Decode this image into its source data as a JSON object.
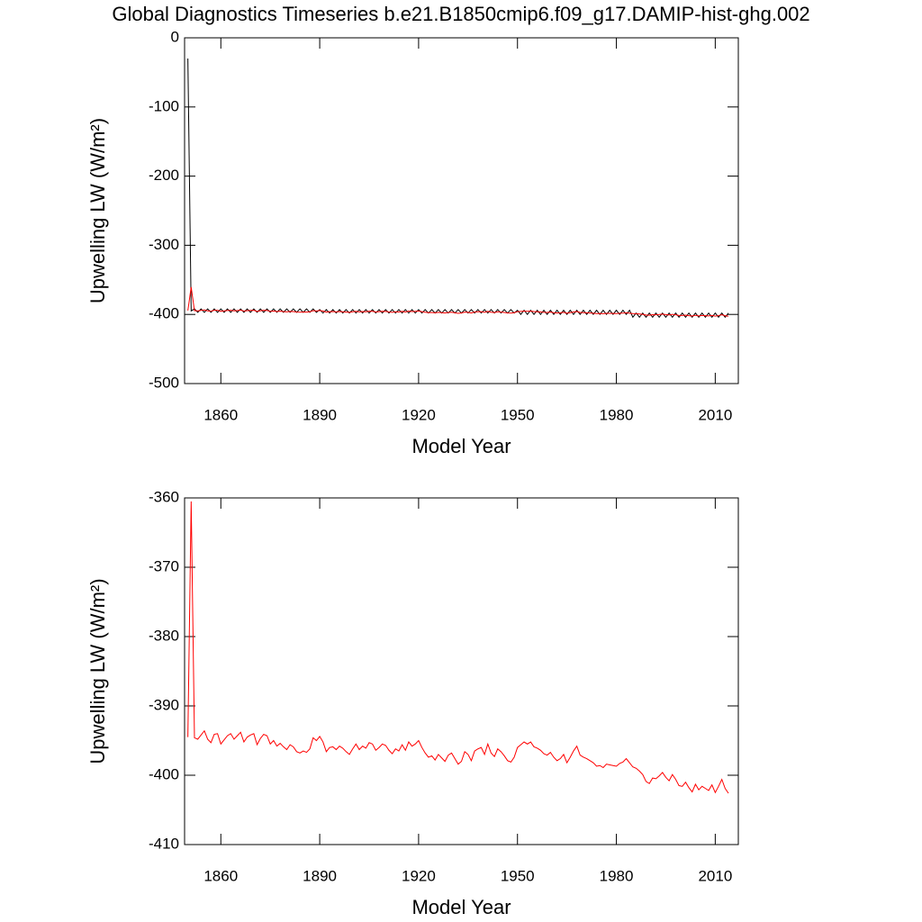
{
  "chart_data": [
    {
      "type": "line",
      "title": "Global Diagnostics Timeseries b.e21.B1850cmip6.f09_g17.DAMIP-hist-ghg.002",
      "xlabel": "Model Year",
      "ylabel": "Upwelling LW (W/m²)",
      "xlim": [
        1849,
        2017
      ],
      "xticks": [
        1860,
        1890,
        1920,
        1950,
        1980,
        2010
      ],
      "ylim": [
        -500,
        0
      ],
      "yticks": [
        0,
        -100,
        -200,
        -300,
        -400,
        -500
      ],
      "x": [
        1850,
        1851,
        1852,
        1853,
        1854,
        1855,
        1856,
        1857,
        1858,
        1859,
        1860,
        1861,
        1862,
        1863,
        1864,
        1865,
        1866,
        1867,
        1868,
        1869,
        1870,
        1871,
        1872,
        1873,
        1874,
        1875,
        1876,
        1877,
        1878,
        1879,
        1880,
        1881,
        1882,
        1883,
        1884,
        1885,
        1886,
        1887,
        1888,
        1889,
        1890,
        1891,
        1892,
        1893,
        1894,
        1895,
        1896,
        1897,
        1898,
        1899,
        1900,
        1901,
        1902,
        1903,
        1904,
        1905,
        1906,
        1907,
        1908,
        1909,
        1910,
        1911,
        1912,
        1913,
        1914,
        1915,
        1916,
        1917,
        1918,
        1919,
        1920,
        1921,
        1922,
        1923,
        1924,
        1925,
        1926,
        1927,
        1928,
        1929,
        1930,
        1931,
        1932,
        1933,
        1934,
        1935,
        1936,
        1937,
        1938,
        1939,
        1940,
        1941,
        1942,
        1943,
        1944,
        1945,
        1946,
        1947,
        1948,
        1949,
        1950,
        1951,
        1952,
        1953,
        1954,
        1955,
        1956,
        1957,
        1958,
        1959,
        1960,
        1961,
        1962,
        1963,
        1964,
        1965,
        1966,
        1967,
        1968,
        1969,
        1970,
        1971,
        1972,
        1973,
        1974,
        1975,
        1976,
        1977,
        1978,
        1979,
        1980,
        1981,
        1982,
        1983,
        1984,
        1985,
        1986,
        1987,
        1988,
        1989,
        1990,
        1991,
        1992,
        1993,
        1994,
        1995,
        1996,
        1997,
        1998,
        1999,
        2000,
        2001,
        2002,
        2003,
        2004,
        2005,
        2006,
        2007,
        2008,
        2009,
        2010,
        2011,
        2012,
        2013,
        2014
      ],
      "series": [
        {
          "color": "#000000",
          "values": [
            -30,
            -395,
            -392,
            -397,
            -392,
            -397,
            -392,
            -397,
            -392,
            -397,
            -392,
            -397,
            -392,
            -397,
            -392,
            -397,
            -392,
            -397,
            -392,
            -397,
            -392,
            -397,
            -392,
            -397,
            -392,
            -397,
            -392,
            -397,
            -392,
            -397,
            -392,
            -397,
            -392,
            -397,
            -392,
            -397,
            -392,
            -397,
            -392,
            -397,
            -393,
            -398,
            -393,
            -398,
            -393,
            -398,
            -393,
            -398,
            -393,
            -398,
            -393,
            -398,
            -393,
            -398,
            -393,
            -398,
            -393,
            -398,
            -393,
            -398,
            -393,
            -398,
            -393,
            -398,
            -393,
            -398,
            -393,
            -398,
            -393,
            -398,
            -393,
            -398,
            -393,
            -398,
            -393,
            -398,
            -393,
            -398,
            -393,
            -398,
            -393,
            -398,
            -393,
            -398,
            -393,
            -398,
            -393,
            -398,
            -393,
            -398,
            -393,
            -398,
            -393,
            -398,
            -393,
            -398,
            -393,
            -398,
            -393,
            -398,
            -394,
            -400,
            -394,
            -400,
            -394,
            -400,
            -394,
            -400,
            -394,
            -400,
            -394,
            -400,
            -394,
            -400,
            -394,
            -400,
            -394,
            -400,
            -394,
            -400,
            -394,
            -400,
            -394,
            -400,
            -394,
            -400,
            -394,
            -400,
            -394,
            -400,
            -394,
            -400,
            -394,
            -400,
            -394,
            -404,
            -398,
            -404,
            -398,
            -404,
            -398,
            -404,
            -398,
            -404,
            -398,
            -404,
            -398,
            -404,
            -398,
            -404,
            -398,
            -404,
            -398,
            -404,
            -398,
            -404,
            -398,
            -404,
            -398,
            -404,
            -398,
            -404,
            -398,
            -404,
            -398
          ]
        },
        {
          "color": "#ff0000",
          "values": [
            -394.5,
            -360.5,
            -394.6,
            -394.8,
            -394.2,
            -393.6,
            -394.8,
            -395.3,
            -394.1,
            -394.0,
            -395.5,
            -394.9,
            -394.3,
            -394.0,
            -394.8,
            -394.3,
            -393.8,
            -395.2,
            -394.5,
            -394.2,
            -394.0,
            -395.6,
            -394.7,
            -394.1,
            -394.3,
            -395.5,
            -395.0,
            -395.8,
            -395.4,
            -395.9,
            -396.3,
            -395.6,
            -395.9,
            -396.6,
            -396.8,
            -396.5,
            -396.7,
            -396.2,
            -394.6,
            -395.0,
            -394.4,
            -395.2,
            -396.6,
            -396.0,
            -395.9,
            -396.3,
            -395.8,
            -396.1,
            -396.6,
            -397.0,
            -396.2,
            -395.5,
            -396.3,
            -395.8,
            -396.1,
            -395.3,
            -395.5,
            -396.4,
            -396.0,
            -395.5,
            -395.7,
            -396.4,
            -396.9,
            -396.2,
            -396.5,
            -395.6,
            -396.4,
            -395.2,
            -395.8,
            -395.5,
            -395.0,
            -396.0,
            -396.8,
            -397.4,
            -397.2,
            -397.8,
            -397.0,
            -397.5,
            -398.0,
            -397.1,
            -396.8,
            -397.6,
            -398.4,
            -398.0,
            -396.6,
            -397.0,
            -397.9,
            -396.5,
            -396.2,
            -396.0,
            -397.0,
            -395.5,
            -396.8,
            -397.3,
            -396.2,
            -396.6,
            -397.2,
            -397.9,
            -398.1,
            -397.4,
            -396.0,
            -395.6,
            -395.2,
            -395.5,
            -395.2,
            -395.9,
            -396.1,
            -396.4,
            -396.9,
            -397.1,
            -396.7,
            -397.4,
            -397.9,
            -397.6,
            -397.0,
            -398.2,
            -397.4,
            -396.5,
            -395.8,
            -397.1,
            -397.4,
            -397.6,
            -397.9,
            -398.2,
            -398.7,
            -398.6,
            -398.9,
            -398.4,
            -398.5,
            -398.6,
            -398.7,
            -398.3,
            -398.1,
            -397.6,
            -398.2,
            -398.8,
            -399.0,
            -399.4,
            -399.9,
            -400.9,
            -401.2,
            -400.4,
            -400.5,
            -400.1,
            -399.6,
            -400.3,
            -400.8,
            -399.9,
            -400.6,
            -401.5,
            -401.6,
            -401.0,
            -401.8,
            -402.4,
            -401.3,
            -402.1,
            -401.6,
            -401.9,
            -402.2,
            -401.4,
            -402.5,
            -401.6,
            -400.6,
            -401.9,
            -402.6
          ]
        }
      ]
    },
    {
      "type": "line",
      "xlabel": "Model Year",
      "ylabel": "Upwelling LW (W/m²)",
      "xlim": [
        1849,
        2017
      ],
      "xticks": [
        1860,
        1890,
        1920,
        1950,
        1980,
        2010
      ],
      "ylim": [
        -410,
        -360
      ],
      "yticks": [
        -360,
        -370,
        -380,
        -390,
        -400,
        -410
      ],
      "x": [
        1850,
        1851,
        1852,
        1853,
        1854,
        1855,
        1856,
        1857,
        1858,
        1859,
        1860,
        1861,
        1862,
        1863,
        1864,
        1865,
        1866,
        1867,
        1868,
        1869,
        1870,
        1871,
        1872,
        1873,
        1874,
        1875,
        1876,
        1877,
        1878,
        1879,
        1880,
        1881,
        1882,
        1883,
        1884,
        1885,
        1886,
        1887,
        1888,
        1889,
        1890,
        1891,
        1892,
        1893,
        1894,
        1895,
        1896,
        1897,
        1898,
        1899,
        1900,
        1901,
        1902,
        1903,
        1904,
        1905,
        1906,
        1907,
        1908,
        1909,
        1910,
        1911,
        1912,
        1913,
        1914,
        1915,
        1916,
        1917,
        1918,
        1919,
        1920,
        1921,
        1922,
        1923,
        1924,
        1925,
        1926,
        1927,
        1928,
        1929,
        1930,
        1931,
        1932,
        1933,
        1934,
        1935,
        1936,
        1937,
        1938,
        1939,
        1940,
        1941,
        1942,
        1943,
        1944,
        1945,
        1946,
        1947,
        1948,
        1949,
        1950,
        1951,
        1952,
        1953,
        1954,
        1955,
        1956,
        1957,
        1958,
        1959,
        1960,
        1961,
        1962,
        1963,
        1964,
        1965,
        1966,
        1967,
        1968,
        1969,
        1970,
        1971,
        1972,
        1973,
        1974,
        1975,
        1976,
        1977,
        1978,
        1979,
        1980,
        1981,
        1982,
        1983,
        1984,
        1985,
        1986,
        1987,
        1988,
        1989,
        1990,
        1991,
        1992,
        1993,
        1994,
        1995,
        1996,
        1997,
        1998,
        1999,
        2000,
        2001,
        2002,
        2003,
        2004,
        2005,
        2006,
        2007,
        2008,
        2009,
        2010,
        2011,
        2012,
        2013,
        2014
      ],
      "series": [
        {
          "color": "#ff0000",
          "values": [
            -394.5,
            -360.5,
            -394.6,
            -394.8,
            -394.2,
            -393.6,
            -394.8,
            -395.3,
            -394.1,
            -394.0,
            -395.5,
            -394.9,
            -394.3,
            -394.0,
            -394.8,
            -394.3,
            -393.8,
            -395.2,
            -394.5,
            -394.2,
            -394.0,
            -395.6,
            -394.7,
            -394.1,
            -394.3,
            -395.5,
            -395.0,
            -395.8,
            -395.4,
            -395.9,
            -396.3,
            -395.6,
            -395.9,
            -396.6,
            -396.8,
            -396.5,
            -396.7,
            -396.2,
            -394.6,
            -395.0,
            -394.4,
            -395.2,
            -396.6,
            -396.0,
            -395.9,
            -396.3,
            -395.8,
            -396.1,
            -396.6,
            -397.0,
            -396.2,
            -395.5,
            -396.3,
            -395.8,
            -396.1,
            -395.3,
            -395.5,
            -396.4,
            -396.0,
            -395.5,
            -395.7,
            -396.4,
            -396.9,
            -396.2,
            -396.5,
            -395.6,
            -396.4,
            -395.2,
            -395.8,
            -395.5,
            -395.0,
            -396.0,
            -396.8,
            -397.4,
            -397.2,
            -397.8,
            -397.0,
            -397.5,
            -398.0,
            -397.1,
            -396.8,
            -397.6,
            -398.4,
            -398.0,
            -396.6,
            -397.0,
            -397.9,
            -396.5,
            -396.2,
            -396.0,
            -397.0,
            -395.5,
            -396.8,
            -397.3,
            -396.2,
            -396.6,
            -397.2,
            -397.9,
            -398.1,
            -397.4,
            -396.0,
            -395.6,
            -395.2,
            -395.5,
            -395.2,
            -395.9,
            -396.1,
            -396.4,
            -396.9,
            -397.1,
            -396.7,
            -397.4,
            -397.9,
            -397.6,
            -397.0,
            -398.2,
            -397.4,
            -396.5,
            -395.8,
            -397.1,
            -397.4,
            -397.6,
            -397.9,
            -398.2,
            -398.7,
            -398.6,
            -398.9,
            -398.4,
            -398.5,
            -398.6,
            -398.7,
            -398.3,
            -398.1,
            -397.6,
            -398.2,
            -398.8,
            -399.0,
            -399.4,
            -399.9,
            -400.9,
            -401.2,
            -400.4,
            -400.5,
            -400.1,
            -399.6,
            -400.3,
            -400.8,
            -399.9,
            -400.6,
            -401.5,
            -401.6,
            -401.0,
            -401.8,
            -402.4,
            -401.3,
            -402.1,
            -401.6,
            -401.9,
            -402.2,
            -401.4,
            -402.5,
            -401.6,
            -400.6,
            -401.9,
            -402.6
          ]
        }
      ]
    }
  ]
}
